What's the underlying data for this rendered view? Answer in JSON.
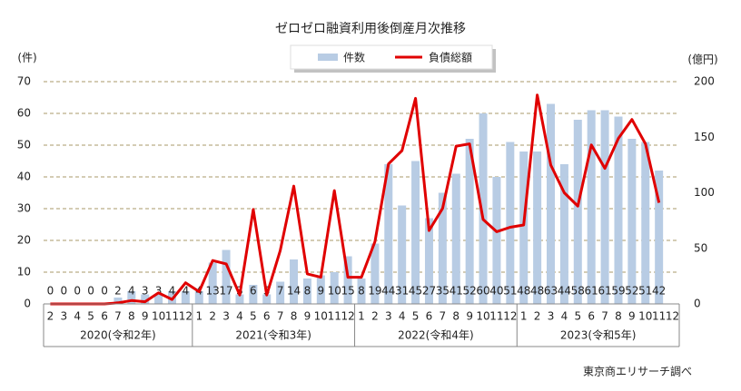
{
  "chart_data": {
    "type": "bar_line",
    "title": "ゼロゼロ融資利用後倒産月次推移",
    "y_label": "(件)",
    "y2_label": "(億円)",
    "source": "東京商エリサーチ調べ",
    "groups": [
      {
        "label": "2020(令和2年)",
        "months": [
          "2",
          "3",
          "4",
          "5",
          "6",
          "7",
          "8",
          "9",
          "10",
          "11",
          "12"
        ]
      },
      {
        "label": "2021(令和3年)",
        "months": [
          "1",
          "2",
          "3",
          "4",
          "5",
          "6",
          "7",
          "8",
          "9",
          "10",
          "11",
          "12"
        ]
      },
      {
        "label": "2022(令和4年)",
        "months": [
          "1",
          "2",
          "3",
          "4",
          "5",
          "6",
          "7",
          "8",
          "9",
          "10",
          "11",
          "12"
        ]
      },
      {
        "label": "2023(令和5年)",
        "months": [
          "1",
          "2",
          "3",
          "4",
          "5",
          "6",
          "7",
          "8",
          "9",
          "10",
          "11",
          "12"
        ]
      }
    ],
    "series": [
      {
        "name": "件数",
        "color": "#b8cce4",
        "kind": "bar",
        "values": [
          0,
          0,
          0,
          0,
          0,
          2,
          4,
          3,
          3,
          4,
          4,
          4,
          13,
          17,
          3,
          6,
          3,
          7,
          14,
          8,
          9,
          10,
          15,
          8,
          19,
          44,
          31,
          45,
          27,
          35,
          41,
          52,
          60,
          40,
          51,
          48,
          48,
          63,
          44,
          58,
          61,
          61,
          59,
          52,
          51,
          42,
          null
        ]
      },
      {
        "name": "負債総額",
        "color": "#e00000",
        "kind": "line",
        "axis": "y2",
        "values": [
          0,
          0,
          0,
          0,
          0,
          1,
          3,
          2,
          10,
          4,
          19,
          11,
          39,
          36,
          8,
          85,
          8,
          48,
          106,
          27,
          24,
          102,
          24,
          24,
          56,
          126,
          138,
          185,
          66,
          86,
          142,
          144,
          76,
          65,
          69,
          71,
          188,
          125,
          100,
          88,
          143,
          122,
          149,
          166,
          144,
          91,
          null
        ]
      }
    ],
    "ylim": [
      0,
      70
    ],
    "yticks": [
      0,
      10,
      20,
      30,
      40,
      50,
      60,
      70
    ],
    "y2lim": [
      0,
      200
    ],
    "y2ticks": [
      0,
      50,
      100,
      150,
      200
    ],
    "grid": true
  }
}
